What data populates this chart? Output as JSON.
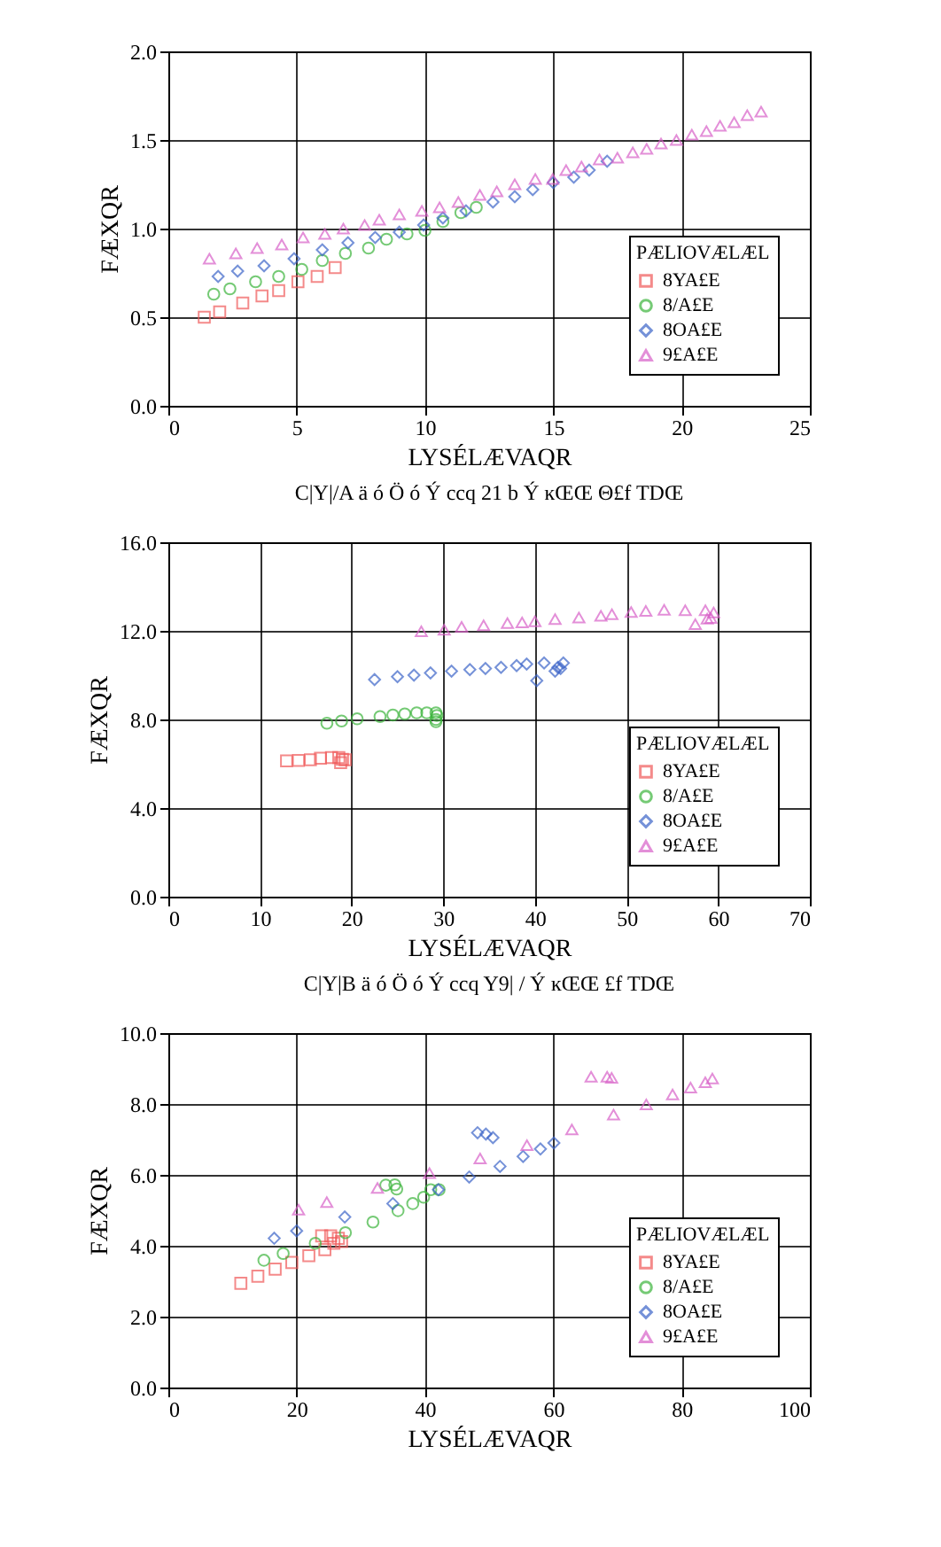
{
  "chart_data": [
    {
      "type": "scatter",
      "xlabel": "LYSÉLÆVAQR",
      "ylabel": "FÆXQR",
      "legend_title": "PÆLIOVÆLÆL",
      "legend": "bottom right",
      "grid": true,
      "annotations": [
        "C|Y|/A ä ó Ö ó Ý ccq 21 b Ý ĸŒŒ Θ£f TDŒ"
      ],
      "xlim": [
        0,
        25
      ],
      "xticks": [
        0,
        5,
        10,
        15,
        20,
        25
      ],
      "ylim": [
        0,
        2
      ],
      "yticks": [
        {
          "value": 0,
          "label": "0.0"
        },
        {
          "value": 0.5,
          "label": "0.5"
        },
        {
          "value": 1,
          "label": "1.0"
        },
        {
          "value": 1.5,
          "label": "1.5"
        },
        {
          "value": 2,
          "label": "2.0"
        }
      ],
      "series": [
        {
          "name": "8YA£E",
          "color": "#f05a5a",
          "marker": "square",
          "x": [
            1.4,
            2.0,
            2.9,
            3.65,
            4.3,
            5.05,
            5.8,
            6.5
          ],
          "values": [
            0.5,
            0.53,
            0.58,
            0.62,
            0.65,
            0.7,
            0.73,
            0.78
          ]
        },
        {
          "name": "8/A£E",
          "color": "#3cb43c",
          "marker": "circle",
          "x": [
            1.77,
            2.4,
            3.4,
            4.3,
            5.2,
            6.0,
            6.9,
            7.8,
            8.5,
            9.3,
            10.0,
            10.7,
            11.4,
            12.0
          ],
          "values": [
            0.63,
            0.66,
            0.7,
            0.73,
            0.77,
            0.82,
            0.86,
            0.89,
            0.94,
            0.97,
            0.99,
            1.04,
            1.09,
            1.12
          ]
        },
        {
          "name": "8OA£E",
          "color": "#3c64c8",
          "marker": "diamond",
          "x": [
            1.94,
            2.7,
            3.73,
            4.9,
            6.0,
            7.0,
            8.06,
            9.0,
            9.95,
            10.7,
            11.6,
            12.65,
            13.5,
            14.2,
            15.0,
            15.8,
            16.4,
            17.1
          ],
          "values": [
            0.73,
            0.76,
            0.79,
            0.83,
            0.88,
            0.92,
            0.95,
            0.98,
            1.02,
            1.06,
            1.1,
            1.15,
            1.18,
            1.22,
            1.26,
            1.29,
            1.33,
            1.38
          ]
        },
        {
          "name": "9£A£E",
          "color": "#d860c8",
          "marker": "triangle",
          "x": [
            1.6,
            2.63,
            3.46,
            4.42,
            5.25,
            6.1,
            6.82,
            7.65,
            8.22,
            9.0,
            9.88,
            10.57,
            11.3,
            12.14,
            12.8,
            13.5,
            14.3,
            14.98,
            15.5,
            16.1,
            16.8,
            17.5,
            18.1,
            18.64,
            19.2,
            19.8,
            20.4,
            20.97,
            21.5,
            22.05,
            22.56,
            23.1
          ],
          "values": [
            0.83,
            0.86,
            0.89,
            0.91,
            0.95,
            0.97,
            1.0,
            1.02,
            1.05,
            1.08,
            1.1,
            1.12,
            1.15,
            1.19,
            1.21,
            1.25,
            1.28,
            1.28,
            1.33,
            1.35,
            1.39,
            1.4,
            1.43,
            1.45,
            1.48,
            1.5,
            1.53,
            1.55,
            1.58,
            1.6,
            1.64,
            1.66
          ]
        }
      ]
    },
    {
      "type": "scatter",
      "xlabel": "LYSÉLÆVAQR",
      "ylabel": "FÆXQR",
      "legend_title": "PÆLIOVÆLÆL",
      "legend": "bottom right",
      "grid": true,
      "annotations": [
        "C|Y|B ä ó Ö ó Ý ccq Y9| / Ý ĸŒŒ £f TDŒ"
      ],
      "xlim": [
        0,
        70
      ],
      "xticks": [
        0,
        10,
        20,
        30,
        40,
        50,
        60,
        70
      ],
      "ylim": [
        0,
        16
      ],
      "yticks": [
        {
          "value": 0,
          "label": "0.0"
        },
        {
          "value": 4,
          "label": "4.0"
        },
        {
          "value": 8,
          "label": "8.0"
        },
        {
          "value": 12,
          "label": "12.0"
        },
        {
          "value": 16,
          "label": "16.0"
        }
      ],
      "series": [
        {
          "name": "8YA£E",
          "color": "#f05a5a",
          "marker": "square",
          "x": [
            12.9,
            14.2,
            15.5,
            16.6,
            17.8,
            18.6,
            19.0,
            19.3,
            18.8
          ],
          "values": [
            6.13,
            6.15,
            6.18,
            6.25,
            6.28,
            6.28,
            6.2,
            6.18,
            6.05
          ]
        },
        {
          "name": "8/A£E",
          "color": "#3cb43c",
          "marker": "circle",
          "x": [
            17.3,
            18.9,
            20.6,
            23.1,
            24.5,
            25.8,
            27.1,
            28.2,
            29.2,
            29.3,
            29.2,
            29.2
          ],
          "values": [
            7.83,
            7.93,
            8.03,
            8.13,
            8.2,
            8.25,
            8.3,
            8.3,
            8.3,
            8.18,
            8.0,
            7.9
          ]
        },
        {
          "name": "8OA£E",
          "color": "#3c64c8",
          "marker": "diamond",
          "x": [
            22.5,
            25,
            26.8,
            28.6,
            30.9,
            32.9,
            34.6,
            36.3,
            38,
            39.1,
            41,
            40.2,
            42.2,
            42.5,
            43.1,
            42.8
          ],
          "values": [
            9.8,
            9.93,
            10.0,
            10.1,
            10.18,
            10.25,
            10.3,
            10.35,
            10.43,
            10.5,
            10.55,
            9.75,
            10.18,
            10.35,
            10.55,
            10.3
          ]
        },
        {
          "name": "9£A£E",
          "color": "#d860c8",
          "marker": "triangle",
          "x": [
            27.6,
            30.1,
            32,
            34.4,
            37,
            38.6,
            40,
            42.2,
            44.8,
            47.2,
            48.4,
            50.5,
            52.1,
            54.1,
            56.4,
            58.6,
            59.5,
            59.2,
            57.5,
            58.8
          ],
          "values": [
            11.98,
            12.05,
            12.18,
            12.25,
            12.35,
            12.38,
            12.43,
            12.53,
            12.6,
            12.68,
            12.75,
            12.85,
            12.9,
            12.95,
            12.93,
            12.93,
            12.83,
            12.58,
            12.3,
            12.55
          ]
        }
      ]
    },
    {
      "type": "scatter",
      "xlabel": "LYSÉLÆVAQR",
      "ylabel": "FÆXQR",
      "legend_title": "PÆLIOVÆLÆL",
      "legend": "bottom right",
      "grid": true,
      "xlim": [
        0,
        100
      ],
      "xticks": [
        0,
        20,
        40,
        60,
        80,
        100
      ],
      "ylim": [
        0,
        10
      ],
      "yticks": [
        {
          "value": 0,
          "label": "0.0"
        },
        {
          "value": 2,
          "label": "2.0"
        },
        {
          "value": 4,
          "label": "4.0"
        },
        {
          "value": 6,
          "label": "6.0"
        },
        {
          "value": 8,
          "label": "8.0"
        },
        {
          "value": 10,
          "label": "10.0"
        }
      ],
      "series": [
        {
          "name": "8YA£E",
          "color": "#f05a5a",
          "marker": "square",
          "x": [
            11.3,
            13.95,
            16.65,
            19.25,
            21.9,
            24.4,
            23.9,
            25.3,
            25.8,
            27,
            26.5
          ],
          "values": [
            2.94,
            3.14,
            3.34,
            3.53,
            3.72,
            3.89,
            4.28,
            4.28,
            4.07,
            4.12,
            4.21
          ]
        },
        {
          "name": "8/A£E",
          "color": "#3cb43c",
          "marker": "circle",
          "x": [
            14.9,
            17.9,
            22.9,
            27.6,
            31.9,
            35.8,
            38.1,
            39.8,
            40.9,
            42.2,
            33.9,
            35.3,
            35.6
          ],
          "values": [
            3.59,
            3.78,
            4.07,
            4.37,
            4.67,
            4.99,
            5.19,
            5.37,
            5.58,
            5.58,
            5.71,
            5.72,
            5.6
          ]
        },
        {
          "name": "8OA£E",
          "color": "#3c64c8",
          "marker": "diamond",
          "x": [
            16.5,
            20,
            27.5,
            35,
            42.1,
            46.9,
            48.2,
            49.5,
            50.6,
            51.7,
            55.3,
            58,
            60.1
          ],
          "values": [
            4.21,
            4.42,
            4.81,
            5.19,
            5.58,
            5.94,
            7.19,
            7.15,
            7.05,
            6.24,
            6.52,
            6.73,
            6.9
          ]
        },
        {
          "name": "9£A£E",
          "color": "#d860c8",
          "marker": "triangle",
          "x": [
            20.3,
            24.7,
            32.6,
            40.7,
            48.6,
            55.9,
            62.9,
            69.4,
            65.9,
            68.4,
            69.1,
            74.5,
            78.6,
            81.4,
            83.7,
            84.8
          ],
          "values": [
            5.02,
            5.23,
            5.63,
            6.05,
            6.46,
            6.84,
            7.28,
            7.7,
            8.77,
            8.77,
            8.74,
            7.99,
            8.27,
            8.46,
            8.61,
            8.72
          ]
        }
      ]
    }
  ]
}
